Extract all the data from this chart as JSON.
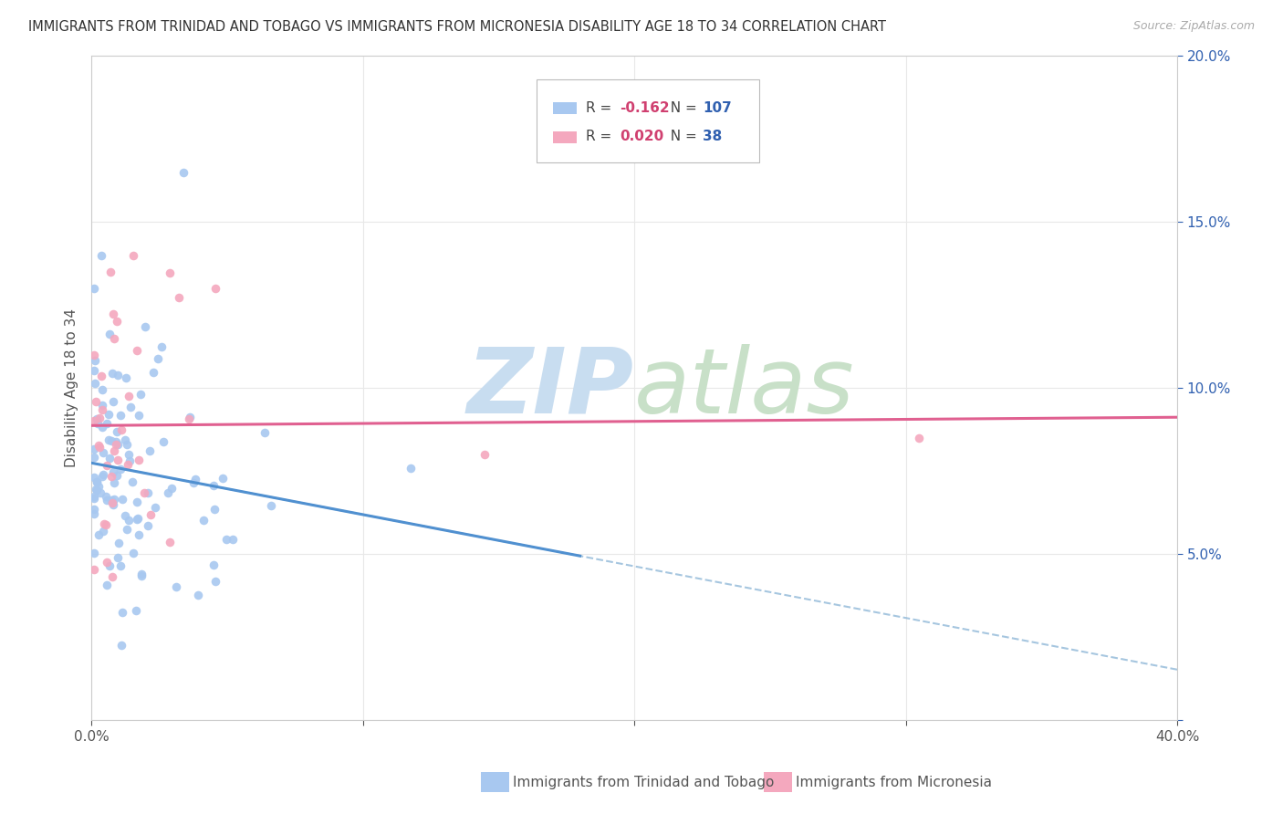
{
  "title": "IMMIGRANTS FROM TRINIDAD AND TOBAGO VS IMMIGRANTS FROM MICRONESIA DISABILITY AGE 18 TO 34 CORRELATION CHART",
  "source": "Source: ZipAtlas.com",
  "ylabel": "Disability Age 18 to 34",
  "series1_label": "Immigrants from Trinidad and Tobago",
  "series1_color": "#a8c8f0",
  "series1_R": "-0.162",
  "series1_N": "107",
  "series2_label": "Immigrants from Micronesia",
  "series2_color": "#f4a8be",
  "series2_R": "0.020",
  "series2_N": "38",
  "line1_color": "#5090d0",
  "line2_color": "#e06090",
  "dash_color": "#90b8e0",
  "R_color": "#d04070",
  "N_color": "#3060b0",
  "xlim": [
    0.0,
    0.4
  ],
  "ylim": [
    0.0,
    0.2
  ],
  "grid_color": "#e8e8e8",
  "background_color": "#ffffff",
  "watermark": "ZIPatlas",
  "watermark_zip_color": "#d8e8f0",
  "watermark_atlas_color": "#d8e8d8"
}
